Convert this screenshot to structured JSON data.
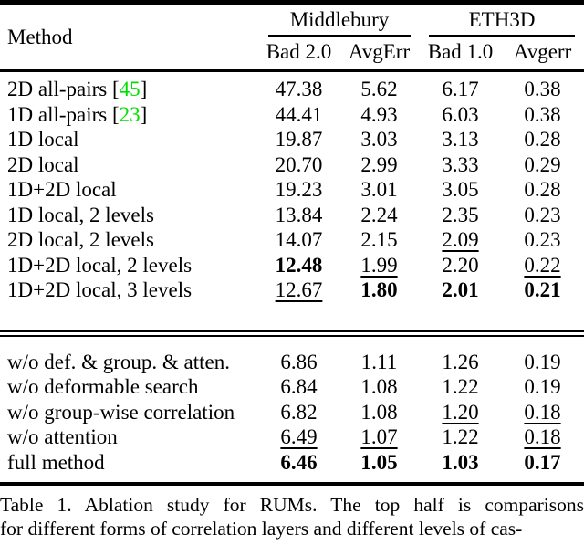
{
  "colors": {
    "citation_green": "#00e000",
    "text": "#000000",
    "background": "#ffffff"
  },
  "table": {
    "method_header": "Method",
    "groups": [
      {
        "label": "Middlebury",
        "columns": [
          "Bad 2.0",
          "AvgErr"
        ]
      },
      {
        "label": "ETH3D",
        "columns": [
          "Bad 1.0",
          "Avgerr"
        ]
      }
    ],
    "sections": [
      {
        "name": "correlation-and-levels-comparison",
        "rows": [
          {
            "method": "2D all-pairs",
            "citation": "45",
            "values": [
              "47.38",
              "5.62",
              "6.17",
              "0.38"
            ],
            "styles": [
              "",
              "",
              "",
              ""
            ]
          },
          {
            "method": "1D all-pairs",
            "citation": "23",
            "values": [
              "44.41",
              "4.93",
              "6.03",
              "0.38"
            ],
            "styles": [
              "",
              "",
              "",
              ""
            ]
          },
          {
            "method": "1D local",
            "citation": null,
            "values": [
              "19.87",
              "3.03",
              "3.13",
              "0.28"
            ],
            "styles": [
              "",
              "",
              "",
              ""
            ]
          },
          {
            "method": "2D local",
            "citation": null,
            "values": [
              "20.70",
              "2.99",
              "3.33",
              "0.29"
            ],
            "styles": [
              "",
              "",
              "",
              ""
            ]
          },
          {
            "method": "1D+2D local",
            "citation": null,
            "values": [
              "19.23",
              "3.01",
              "3.05",
              "0.28"
            ],
            "styles": [
              "",
              "",
              "",
              ""
            ]
          },
          {
            "method": "1D local, 2 levels",
            "citation": null,
            "values": [
              "13.84",
              "2.24",
              "2.35",
              "0.23"
            ],
            "styles": [
              "",
              "",
              "",
              ""
            ]
          },
          {
            "method": "2D local, 2 levels",
            "citation": null,
            "values": [
              "14.07",
              "2.15",
              "2.09",
              "0.23"
            ],
            "styles": [
              "",
              "",
              "u",
              ""
            ]
          },
          {
            "method": "1D+2D local, 2 levels",
            "citation": null,
            "values": [
              "12.48",
              "1.99",
              "2.20",
              "0.22"
            ],
            "styles": [
              "b",
              "u",
              "",
              "u"
            ]
          },
          {
            "method": "1D+2D local, 3 levels",
            "citation": null,
            "values": [
              "12.67",
              "1.80",
              "2.01",
              "0.21"
            ],
            "styles": [
              "u",
              "b",
              "b",
              "b"
            ]
          }
        ]
      },
      {
        "name": "component-ablation",
        "rows": [
          {
            "method": "w/o def. & group. & atten.",
            "citation": null,
            "values": [
              "6.86",
              "1.11",
              "1.26",
              "0.19"
            ],
            "styles": [
              "",
              "",
              "",
              ""
            ]
          },
          {
            "method": "w/o deformable search",
            "citation": null,
            "values": [
              "6.84",
              "1.08",
              "1.22",
              "0.19"
            ],
            "styles": [
              "",
              "",
              "",
              ""
            ]
          },
          {
            "method": "w/o group-wise correlation",
            "citation": null,
            "values": [
              "6.82",
              "1.08",
              "1.20",
              "0.18"
            ],
            "styles": [
              "",
              "",
              "u",
              "u"
            ]
          },
          {
            "method": "w/o attention",
            "citation": null,
            "values": [
              "6.49",
              "1.07",
              "1.22",
              "0.18"
            ],
            "styles": [
              "u",
              "u",
              "",
              "u"
            ]
          },
          {
            "method": "full method",
            "citation": null,
            "values": [
              "6.46",
              "1.05",
              "1.03",
              "0.17"
            ],
            "styles": [
              "b",
              "b",
              "b",
              "b"
            ]
          }
        ]
      }
    ]
  },
  "caption": {
    "line1": "Table 1. Ablation study for RUMs. The top half is comparisons",
    "line2": "for different forms of correlation layers and different levels of cas-"
  }
}
